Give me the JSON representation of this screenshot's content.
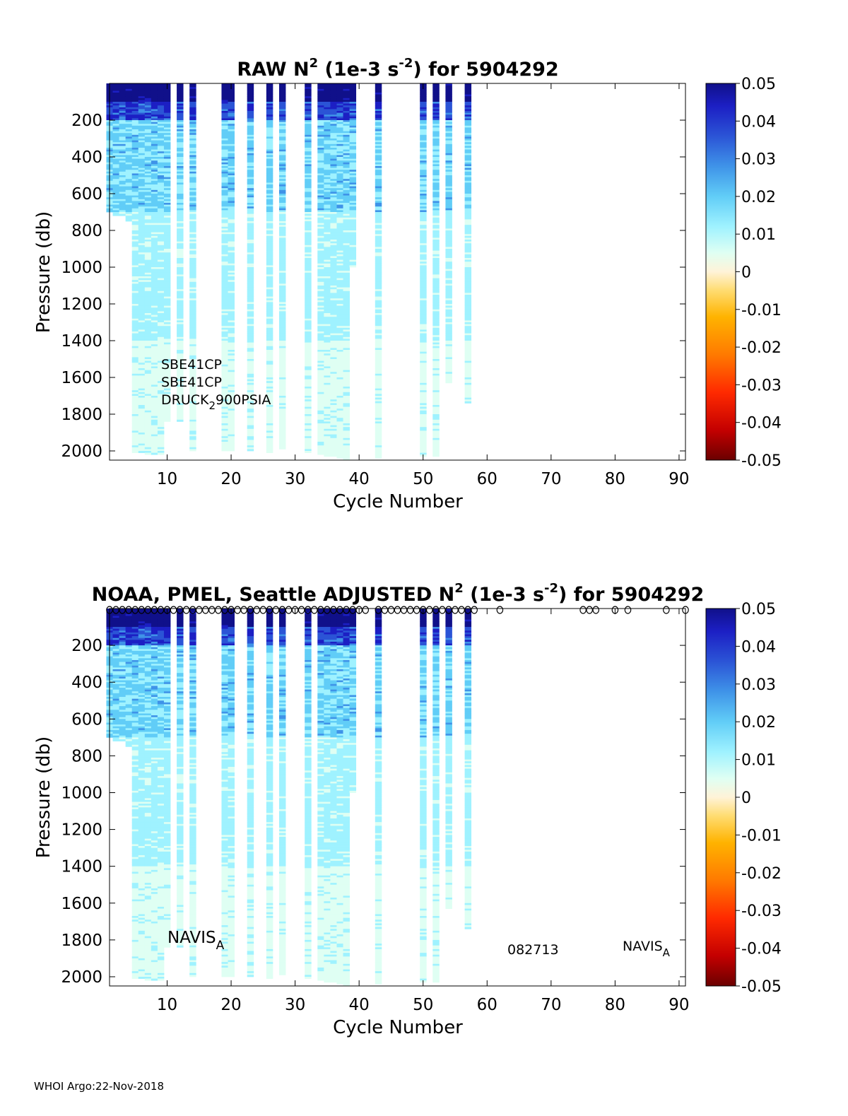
{
  "footer": "WHOI Argo:22-Nov-2018",
  "colors": {
    "colormap": [
      "#6b0000",
      "#c40000",
      "#ff2a00",
      "#ff7a00",
      "#ffb300",
      "#ffdc70",
      "#fff3d8",
      "#dffff3",
      "#9ff2ff",
      "#61cdf7",
      "#3f93e8",
      "#2b54d6",
      "#1c1fc4",
      "#10108a"
    ]
  },
  "chart_data": [
    {
      "type": "heatmap",
      "title": "RAW N",
      "title_sup": "2",
      "title_mid": " (1e-3 s",
      "title_sup2": "-2",
      "title_end": ") for 5904292",
      "xlabel": "Cycle Number",
      "ylabel": "Pressure (db)",
      "xlim": [
        1,
        91
      ],
      "ylim": [
        2050,
        0
      ],
      "xticks": [
        10,
        20,
        30,
        40,
        50,
        60,
        70,
        80,
        90
      ],
      "yticks": [
        200,
        400,
        600,
        800,
        1000,
        1200,
        1400,
        1600,
        1800,
        2000
      ],
      "colorbar": {
        "clim": [
          -0.05,
          0.05
        ],
        "ticks": [
          "0.05",
          "0.04",
          "0.03",
          "0.02",
          "0.01",
          "0",
          "-0.01",
          "-0.02",
          "-0.03",
          "-0.04",
          "-0.05"
        ]
      },
      "annotations": [
        {
          "text": "SBE41CP"
        },
        {
          "text": "SBE41CP"
        },
        {
          "text": "DRUCK",
          "sub": "2",
          "rest": "900PSIA"
        }
      ],
      "profiles": [
        {
          "cycle": 1,
          "maxp": 700
        },
        {
          "cycle": 2,
          "maxp": 720
        },
        {
          "cycle": 3,
          "maxp": 720
        },
        {
          "cycle": 4,
          "maxp": 750
        },
        {
          "cycle": 5,
          "maxp": 2010
        },
        {
          "cycle": 6,
          "maxp": 2010
        },
        {
          "cycle": 7,
          "maxp": 2015
        },
        {
          "cycle": 8,
          "maxp": 2015
        },
        {
          "cycle": 9,
          "maxp": 2020
        },
        {
          "cycle": 10,
          "maxp": 1840
        },
        {
          "cycle": 12,
          "maxp": 1840
        },
        {
          "cycle": 14,
          "maxp": 2000
        },
        {
          "cycle": 19,
          "maxp": 2000
        },
        {
          "cycle": 20,
          "maxp": 2000
        },
        {
          "cycle": 23,
          "maxp": 2000
        },
        {
          "cycle": 26,
          "maxp": 2010
        },
        {
          "cycle": 28,
          "maxp": 1990
        },
        {
          "cycle": 32,
          "maxp": 2010
        },
        {
          "cycle": 34,
          "maxp": 2020
        },
        {
          "cycle": 35,
          "maxp": 2025
        },
        {
          "cycle": 36,
          "maxp": 2030
        },
        {
          "cycle": 37,
          "maxp": 2040
        },
        {
          "cycle": 38,
          "maxp": 2045
        },
        {
          "cycle": 39,
          "maxp": 1000
        },
        {
          "cycle": 43,
          "maxp": 2040
        },
        {
          "cycle": 50,
          "maxp": 2030
        },
        {
          "cycle": 52,
          "maxp": 2025
        },
        {
          "cycle": 54,
          "maxp": 1630
        },
        {
          "cycle": 57,
          "maxp": 1740
        }
      ]
    },
    {
      "type": "heatmap",
      "title": "NOAA, PMEL, Seattle  ADJUSTED N",
      "title_sup": "2",
      "title_mid": " (1e-3 s",
      "title_sup2": "-2",
      "title_end": ") for 5904292",
      "xlabel": "Cycle Number",
      "ylabel": "Pressure (db)",
      "xlim": [
        1,
        91
      ],
      "ylim": [
        2050,
        0
      ],
      "xticks": [
        10,
        20,
        30,
        40,
        50,
        60,
        70,
        80,
        90
      ],
      "yticks": [
        200,
        400,
        600,
        800,
        1000,
        1200,
        1400,
        1600,
        1800,
        2000
      ],
      "colorbar": {
        "clim": [
          -0.05,
          0.05
        ],
        "ticks": [
          "0.05",
          "0.04",
          "0.03",
          "0.02",
          "0.01",
          "0",
          "-0.01",
          "-0.02",
          "-0.03",
          "-0.04",
          "-0.05"
        ]
      },
      "annotations": [
        {
          "text": "NAVIS",
          "sub": "A"
        },
        {
          "text": "082713"
        },
        {
          "text": "NAVIS",
          "sub": "A"
        }
      ],
      "markers_cycles": [
        1,
        2,
        3,
        4,
        5,
        6,
        7,
        8,
        9,
        10,
        11,
        12,
        13,
        14,
        15,
        16,
        17,
        18,
        19,
        20,
        21,
        22,
        23,
        24,
        25,
        26,
        27,
        28,
        29,
        30,
        31,
        32,
        33,
        34,
        35,
        36,
        37,
        38,
        39,
        40,
        41,
        43,
        44,
        45,
        46,
        47,
        48,
        49,
        50,
        51,
        52,
        53,
        54,
        55,
        56,
        57,
        58,
        62,
        75,
        76,
        77,
        80,
        82,
        88,
        91
      ],
      "profiles": [
        {
          "cycle": 1,
          "maxp": 700
        },
        {
          "cycle": 2,
          "maxp": 720
        },
        {
          "cycle": 3,
          "maxp": 720
        },
        {
          "cycle": 4,
          "maxp": 750
        },
        {
          "cycle": 5,
          "maxp": 2010
        },
        {
          "cycle": 6,
          "maxp": 2010
        },
        {
          "cycle": 7,
          "maxp": 2015
        },
        {
          "cycle": 8,
          "maxp": 2015
        },
        {
          "cycle": 9,
          "maxp": 2020
        },
        {
          "cycle": 10,
          "maxp": 1840
        },
        {
          "cycle": 12,
          "maxp": 1840
        },
        {
          "cycle": 14,
          "maxp": 2000
        },
        {
          "cycle": 19,
          "maxp": 2000
        },
        {
          "cycle": 20,
          "maxp": 2000
        },
        {
          "cycle": 23,
          "maxp": 2000
        },
        {
          "cycle": 26,
          "maxp": 2010
        },
        {
          "cycle": 28,
          "maxp": 1990
        },
        {
          "cycle": 32,
          "maxp": 2010
        },
        {
          "cycle": 34,
          "maxp": 2020
        },
        {
          "cycle": 35,
          "maxp": 2025
        },
        {
          "cycle": 36,
          "maxp": 2030
        },
        {
          "cycle": 37,
          "maxp": 2040
        },
        {
          "cycle": 38,
          "maxp": 2045
        },
        {
          "cycle": 39,
          "maxp": 1000
        },
        {
          "cycle": 43,
          "maxp": 2040
        },
        {
          "cycle": 50,
          "maxp": 2030
        },
        {
          "cycle": 52,
          "maxp": 2025
        },
        {
          "cycle": 54,
          "maxp": 1630
        },
        {
          "cycle": 57,
          "maxp": 1740
        }
      ]
    }
  ]
}
